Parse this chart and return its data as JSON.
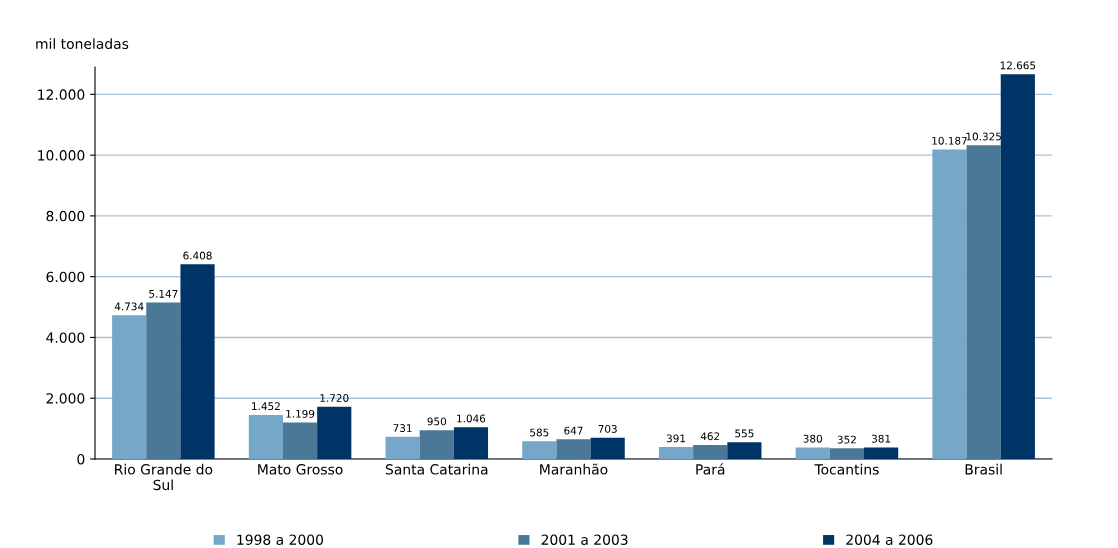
{
  "chart_data": {
    "type": "bar",
    "ylabel": "mil toneladas",
    "categories": [
      "Rio Grande do\nSul",
      "Mato Grosso",
      "Santa Catarina",
      "Maranhão",
      "Pará",
      "Tocantins",
      "Brasil"
    ],
    "series": [
      {
        "name": "1998 a 2000",
        "color": "#75a7c9",
        "values": [
          4734,
          1452,
          731,
          585,
          391,
          380,
          10187
        ],
        "value_labels": [
          "4.734",
          "1.452",
          "731",
          "585",
          "391",
          "380",
          "10.187"
        ]
      },
      {
        "name": "2001 a 2003",
        "color": "#4a7896",
        "values": [
          5147,
          1199,
          950,
          647,
          462,
          352,
          10325
        ],
        "value_labels": [
          "5.147",
          "1.199",
          "950",
          "647",
          "462",
          "352",
          "10.325"
        ]
      },
      {
        "name": "2004 a 2006",
        "color": "#003366",
        "values": [
          6408,
          1720,
          1046,
          703,
          555,
          381,
          12665
        ],
        "value_labels": [
          "6.408",
          "1.720",
          "1.046",
          "703",
          "555",
          "381",
          "12.665"
        ]
      }
    ],
    "ylim": [
      0,
      12900
    ],
    "yticks": [
      0,
      {
        "value": 2000,
        "label": "2.000"
      },
      {
        "value": 4000,
        "label": "4.000"
      },
      {
        "value": 6000,
        "label": "6.000"
      },
      {
        "value": 8000,
        "label": "8.000"
      },
      {
        "value": 10000,
        "label": "10.000"
      },
      {
        "value": 12000,
        "label": "12.000"
      }
    ],
    "grid": "y",
    "legend": "bottom"
  }
}
